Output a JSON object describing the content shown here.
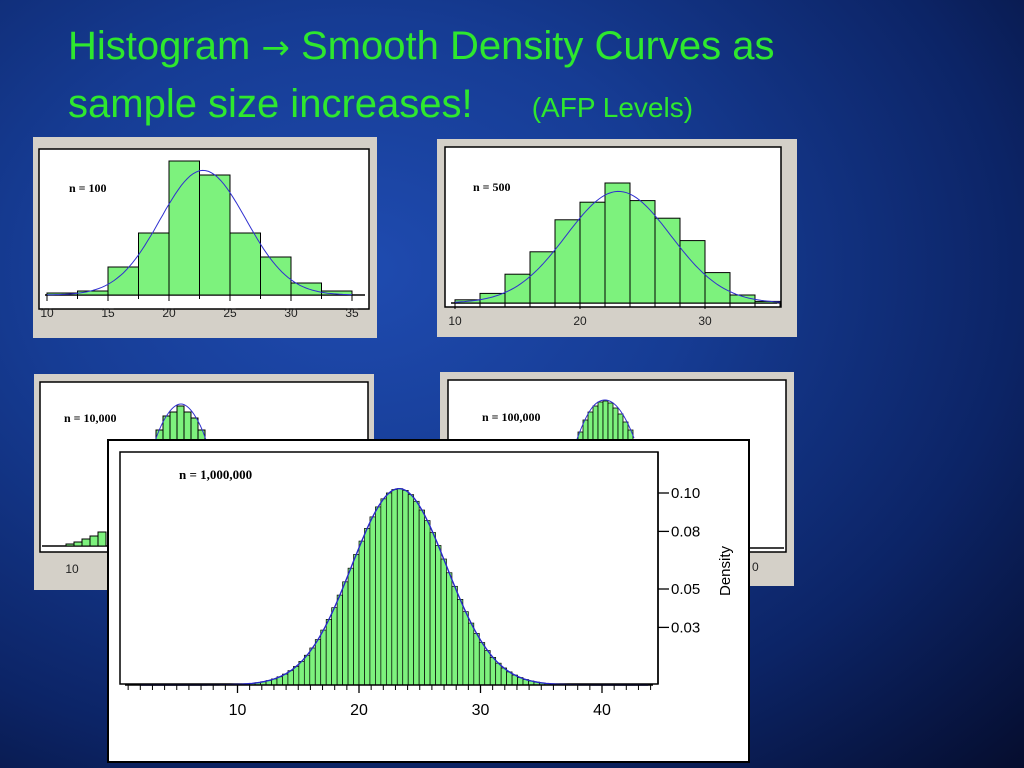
{
  "slide": {
    "title_part1": "Histogram",
    "title_arrow": "→",
    "title_part2": " Smooth Density Curves as",
    "title_line2": "sample size increases!",
    "title_sub": "(AFP Levels)"
  },
  "colors": {
    "bar_fill": "#7df27d",
    "curve": "#3030d0",
    "title": "#2ee82e"
  },
  "chart_data": [
    {
      "type": "bar",
      "label": "n = 100",
      "xlim": [
        10,
        35
      ],
      "ticks": [
        "10",
        "15",
        "20",
        "25",
        "30",
        "35"
      ],
      "bins": [
        [
          10,
          12.5,
          1
        ],
        [
          12.5,
          15,
          2
        ],
        [
          15,
          17.5,
          14
        ],
        [
          17.5,
          20,
          31
        ],
        [
          20,
          22.5,
          67
        ],
        [
          22.5,
          25,
          60
        ],
        [
          25,
          27.5,
          31
        ],
        [
          27.5,
          30,
          19
        ],
        [
          30,
          32.5,
          6
        ],
        [
          32.5,
          35,
          2
        ]
      ]
    },
    {
      "type": "bar",
      "label": "n = 500",
      "xlim": [
        10,
        35
      ],
      "ticks": [
        "10",
        "20",
        "30"
      ],
      "bins": [
        [
          10,
          12,
          2
        ],
        [
          12,
          14,
          6
        ],
        [
          14,
          16,
          18
        ],
        [
          16,
          18,
          32
        ],
        [
          18,
          20,
          52
        ],
        [
          20,
          22,
          63
        ],
        [
          22,
          24,
          75
        ],
        [
          24,
          26,
          64
        ],
        [
          26,
          28,
          53
        ],
        [
          28,
          30,
          39
        ],
        [
          30,
          32,
          19
        ],
        [
          32,
          34,
          5
        ],
        [
          34,
          36,
          1
        ]
      ]
    },
    {
      "type": "bar",
      "label": "n = 10,000",
      "ticks": [
        "10"
      ]
    },
    {
      "type": "bar",
      "label": "n = 100,000"
    },
    {
      "type": "bar",
      "label": "n = 1,000,000",
      "xlim": [
        0,
        45
      ],
      "ylabel": "Density",
      "xticks": [
        "10",
        "20",
        "30",
        "40"
      ],
      "yticks": [
        "0.10",
        "0.08",
        "0.05",
        "0.03"
      ],
      "mean": 23.3,
      "sd": 3.9
    }
  ]
}
